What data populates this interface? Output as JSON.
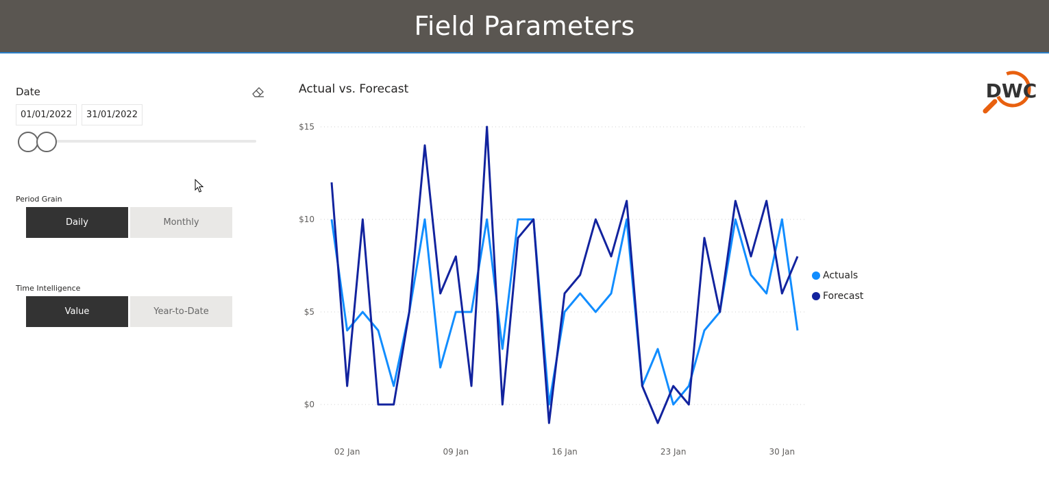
{
  "header": {
    "title": "Field Parameters"
  },
  "date_slicer": {
    "label": "Date",
    "start": "01/01/2022",
    "end": "31/01/2022",
    "range_fraction": [
      0.0,
      0.08
    ]
  },
  "period_grain": {
    "label": "Period Grain",
    "options": [
      "Daily",
      "Monthly"
    ],
    "selected": "Daily"
  },
  "time_intelligence": {
    "label": "Time Intelligence",
    "options": [
      "Value",
      "Year-to-Date"
    ],
    "selected": "Value"
  },
  "logo": {
    "text": "DWC"
  },
  "colors": {
    "actuals": "#118dff",
    "forecast": "#12239e",
    "header": "#5a5651",
    "logo_orange": "#e8600f"
  },
  "chart_data": {
    "type": "line",
    "title": "Actual vs. Forecast",
    "x": [
      1,
      2,
      3,
      4,
      5,
      6,
      7,
      8,
      9,
      10,
      11,
      12,
      13,
      14,
      15,
      16,
      17,
      18,
      19,
      20,
      21,
      22,
      23,
      24,
      25,
      26,
      27,
      28,
      29,
      30,
      31
    ],
    "x_tick_days": [
      2,
      9,
      16,
      23,
      30
    ],
    "x_tick_labels": [
      "02 Jan",
      "09 Jan",
      "16 Jan",
      "23 Jan",
      "30 Jan"
    ],
    "y_ticks": [
      0,
      5,
      10,
      15
    ],
    "y_tick_labels": [
      "$0",
      "$5",
      "$10",
      "$15"
    ],
    "ylim": [
      -1,
      15
    ],
    "grid": true,
    "legend": "right",
    "series": [
      {
        "name": "Actuals",
        "color": "#118dff",
        "values": [
          10,
          4,
          5,
          4,
          1,
          5,
          10,
          2,
          5,
          5,
          10,
          3,
          10,
          10,
          0,
          5,
          6,
          5,
          6,
          10,
          1,
          3,
          0,
          1,
          4,
          5,
          10,
          7,
          6,
          10,
          4
        ]
      },
      {
        "name": "Forecast",
        "color": "#12239e",
        "values": [
          12,
          1,
          10,
          0,
          0,
          5,
          14,
          6,
          8,
          1,
          15,
          0,
          9,
          10,
          -1,
          6,
          7,
          10,
          8,
          11,
          1,
          -1,
          1,
          0,
          9,
          5,
          11,
          8,
          11,
          6,
          8
        ]
      }
    ]
  }
}
